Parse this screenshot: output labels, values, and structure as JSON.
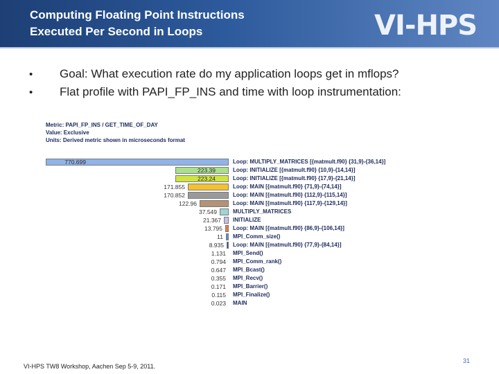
{
  "header": {
    "title_line1": "Computing Floating Point Instructions",
    "title_line2": "Executed Per Second in Loops",
    "logo_text": "VI-HPS",
    "background_color": "#2d5a9c"
  },
  "bullets": [
    {
      "symbol": "•",
      "text": "Goal: What execution rate do my application loops get in mflops?"
    },
    {
      "symbol": "•",
      "text": "Flat profile with PAPI_FP_INS and time with loop instrumentation:"
    }
  ],
  "profile": {
    "metric": "Metric: PAPI_FP_INS / GET_TIME_OF_DAY",
    "value": "Value: Exclusive",
    "units": "Units: Derived metric shown in microseconds format",
    "rows": [
      {
        "value": "770.699",
        "fraction": 1.0,
        "color": "#8fb4ea",
        "label": "Loop: MULTIPLY_MATRICES [{matmult.f90} {31,9}-{36,14}]"
      },
      {
        "value": "223.39",
        "fraction": 0.29,
        "color": "#a8e08c",
        "label": "Loop: INITIALIZE [{matmult.f90} {10,9}-{14,14}]"
      },
      {
        "value": "223.24",
        "fraction": 0.29,
        "color": "#cfe53e",
        "label": "Loop: INITIALIZE [{matmult.f90} {17,9}-{21,14}]"
      },
      {
        "value": "171.855",
        "fraction": 0.223,
        "color": "#f2c232",
        "label": "Loop: MAIN [{matmult.f90} {71,9}-{74,14}]"
      },
      {
        "value": "170.852",
        "fraction": 0.222,
        "color": "#9a9a9a",
        "label": "Loop: MAIN [{matmult.f90} {112,9}-{115,14}]"
      },
      {
        "value": "122.96",
        "fraction": 0.16,
        "color": "#b49276",
        "label": "Loop: MAIN [{matmult.f90} {117,9}-{129,14}]"
      },
      {
        "value": "37.549",
        "fraction": 0.049,
        "color": "#9fd4d6",
        "label": "MULTIPLY_MATRICES"
      },
      {
        "value": "21.367",
        "fraction": 0.028,
        "color": "#c8c0e8",
        "label": "INITIALIZE"
      },
      {
        "value": "13.795",
        "fraction": 0.018,
        "color": "#f07a3a",
        "label": "Loop: MAIN [{matmult.f90} {86,9}-{106,14}]"
      },
      {
        "value": "11",
        "fraction": 0.014,
        "color": "#5a8fd0",
        "label": "MPI_Comm_size()"
      },
      {
        "value": "8.935",
        "fraction": 0.012,
        "color": "#2b4fa0",
        "label": "Loop: MAIN [{matmult.f90} {77,9}-{84,14}]"
      },
      {
        "value": "1.131",
        "fraction": 0.0,
        "color": "#ffffff",
        "label": "MPI_Send()"
      },
      {
        "value": "0.794",
        "fraction": 0.0,
        "color": "#ffffff",
        "label": "MPI_Comm_rank()"
      },
      {
        "value": "0.647",
        "fraction": 0.0,
        "color": "#ffffff",
        "label": "MPI_Bcast()"
      },
      {
        "value": "0.355",
        "fraction": 0.0,
        "color": "#ffffff",
        "label": "MPI_Recv()"
      },
      {
        "value": "0.171",
        "fraction": 0.0,
        "color": "#ffffff",
        "label": "MPI_Barrier()"
      },
      {
        "value": "0.115",
        "fraction": 0.0,
        "color": "#ffffff",
        "label": "MPI_Finalize()"
      },
      {
        "value": "0.023",
        "fraction": 0.0,
        "color": "#ffffff",
        "label": "MAIN"
      }
    ]
  },
  "footer": {
    "text": "VI-HPS TW8 Workshop, Aachen Sep 5-9, 2011.",
    "slide_number": "31"
  }
}
